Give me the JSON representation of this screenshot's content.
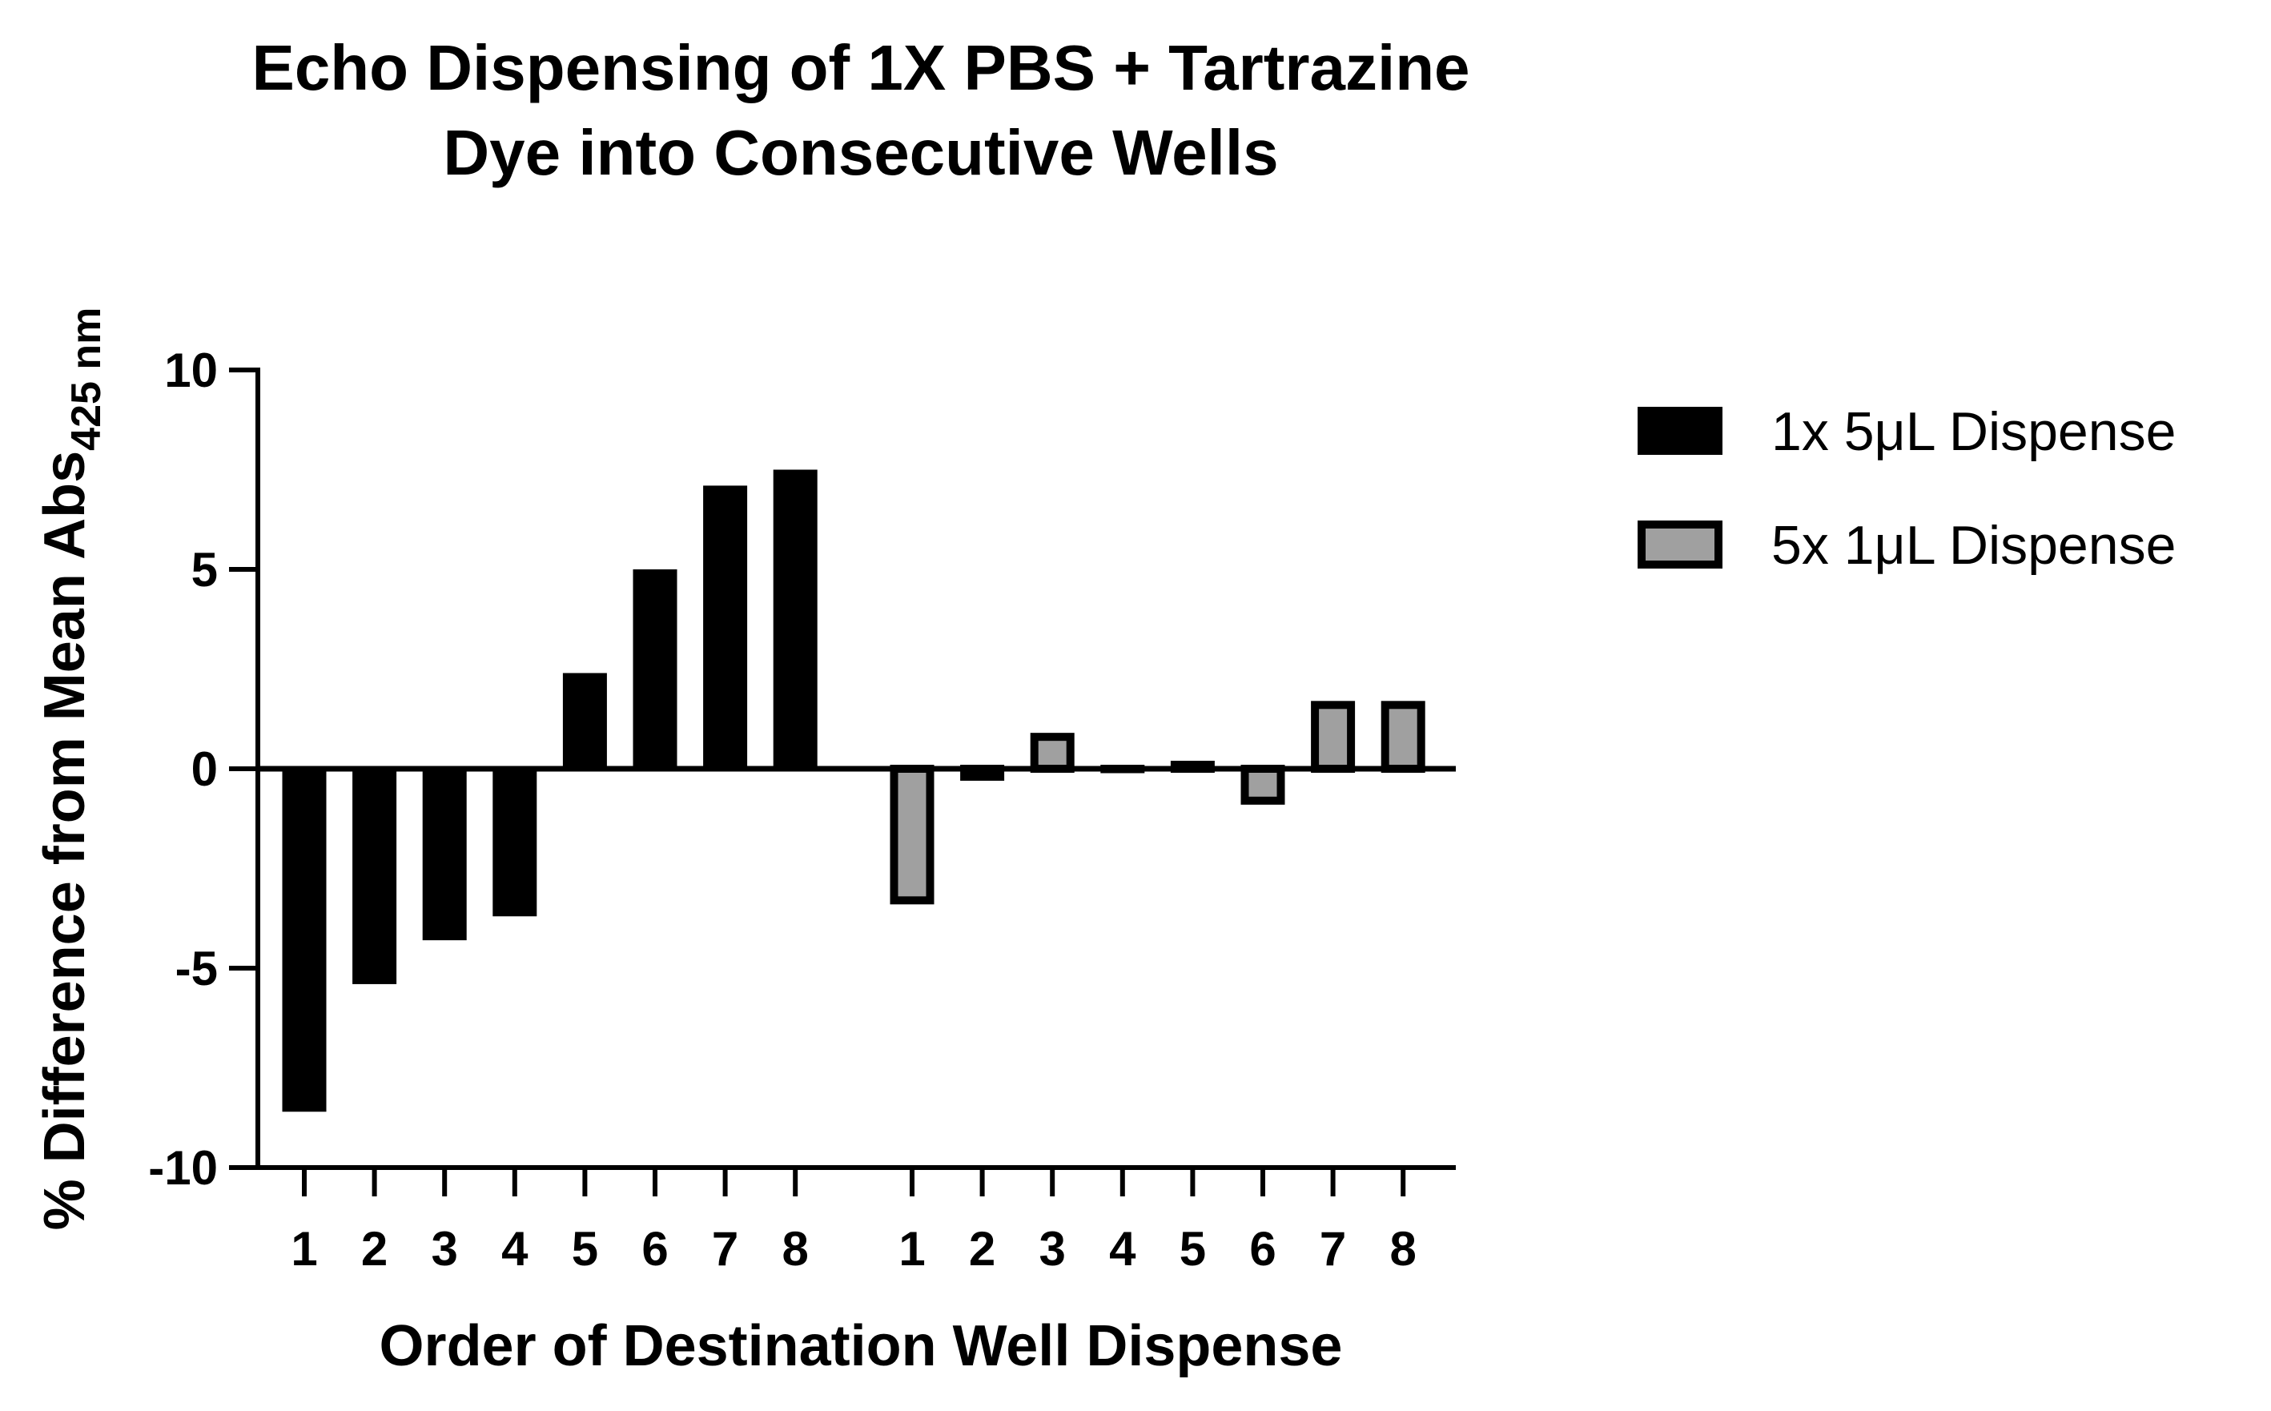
{
  "chart_data": {
    "type": "bar",
    "title_lines": [
      "Echo Dispensing of 1X PBS + Tartrazine",
      "Dye into Consecutive Wells"
    ],
    "xlabel": "Order of Destination Well Dispense",
    "ylabel": {
      "main": "% Difference from Mean Abs",
      "subscript": "425 nm"
    },
    "ylim": [
      -10,
      10
    ],
    "yticks": [
      10,
      5,
      0,
      -5,
      -10
    ],
    "grid": false,
    "legend_position": "right",
    "categories": [
      "1",
      "2",
      "3",
      "4",
      "5",
      "6",
      "7",
      "8"
    ],
    "series": [
      {
        "name": "1x 5μL Dispense",
        "fill": "#000000",
        "stroke": "#000000",
        "values": [
          -8.6,
          -5.4,
          -4.3,
          -3.7,
          2.4,
          5.0,
          7.1,
          7.5
        ]
      },
      {
        "name": "5x 1μL Dispense",
        "fill": "#a0a0a0",
        "stroke": "#000000",
        "values": [
          -3.3,
          -0.2,
          0.8,
          0.0,
          0.1,
          -0.8,
          1.6,
          1.6
        ]
      }
    ]
  }
}
